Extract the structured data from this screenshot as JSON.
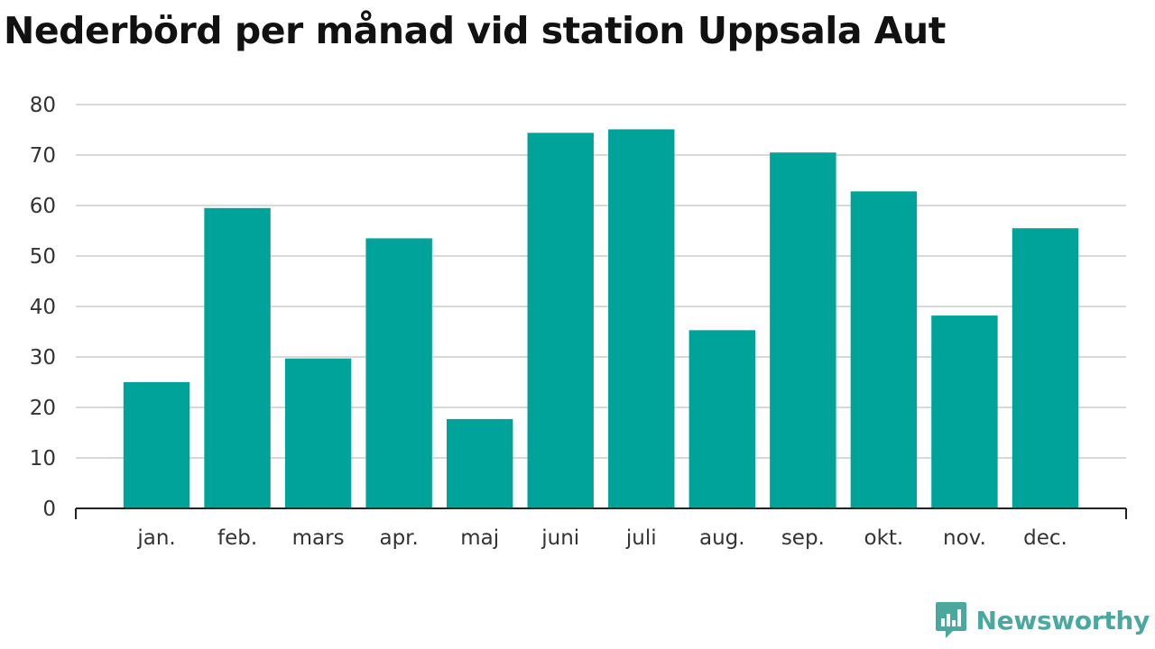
{
  "title": "Nederbörd per månad vid station Uppsala Aut",
  "brand": {
    "name": "Newsworthy",
    "icon": "newsworthy-logo-icon"
  },
  "colors": {
    "bar": "#00a39a",
    "grid": "#d9d9d9",
    "axis": "#222222",
    "brand": "#4aa89f"
  },
  "chart_data": {
    "type": "bar",
    "title": "Nederbörd per månad vid station Uppsala Aut",
    "xlabel": "",
    "ylabel": "",
    "categories": [
      "jan.",
      "feb.",
      "mars",
      "apr.",
      "maj",
      "juni",
      "juli",
      "aug.",
      "sep.",
      "okt.",
      "nov.",
      "dec."
    ],
    "values": [
      25.0,
      59.5,
      29.7,
      53.5,
      17.7,
      74.4,
      75.1,
      35.3,
      70.5,
      62.8,
      38.2,
      55.5
    ],
    "ylim": [
      0,
      80
    ],
    "yticks": [
      0,
      10,
      20,
      30,
      40,
      50,
      60,
      70,
      80
    ],
    "grid": true,
    "legend": "none"
  }
}
